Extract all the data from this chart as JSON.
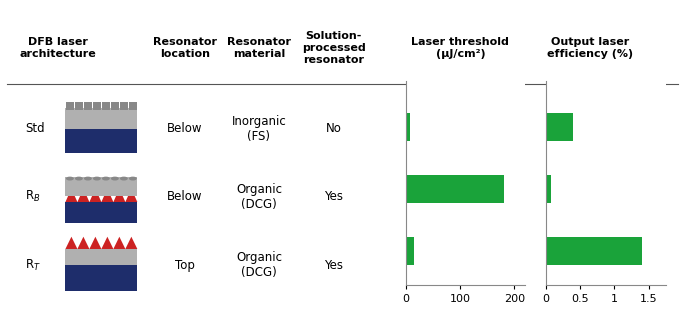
{
  "col_headers": [
    "DFB laser\narchitecture",
    "Resonator\nlocation",
    "Resonator\nmaterial",
    "Solution-\nprocessed\nresonator",
    "Laser threshold\n(μJ/cm²)",
    "Output laser\nefficiency (%)"
  ],
  "rows": [
    {
      "label": "Std",
      "location": "Below",
      "material": "Inorganic\n(FS)",
      "solution": "No",
      "threshold": 9,
      "efficiency": 0.4
    },
    {
      "label": "R_B",
      "location": "Below",
      "material": "Organic\n(DCG)",
      "solution": "Yes",
      "threshold": 180,
      "efficiency": 0.07
    },
    {
      "label": "R_T",
      "location": "Top",
      "material": "Organic\n(DCG)",
      "solution": "Yes",
      "threshold": 15,
      "efficiency": 1.4
    }
  ],
  "threshold_xlim": [
    0,
    220
  ],
  "threshold_xticks": [
    0,
    100,
    200
  ],
  "efficiency_xlim": [
    0,
    1.75
  ],
  "efficiency_xticks": [
    0,
    0.5,
    1,
    1.5
  ],
  "bar_color": "#1aa33a",
  "bg_color": "#ffffff",
  "text_color": "#000000",
  "navy_color": "#1e2d6b",
  "red_color": "#cc2222",
  "gray_color": "#b0b0b0",
  "dark_gray_color": "#888888",
  "header_fontsize": 8.0,
  "body_fontsize": 8.5
}
